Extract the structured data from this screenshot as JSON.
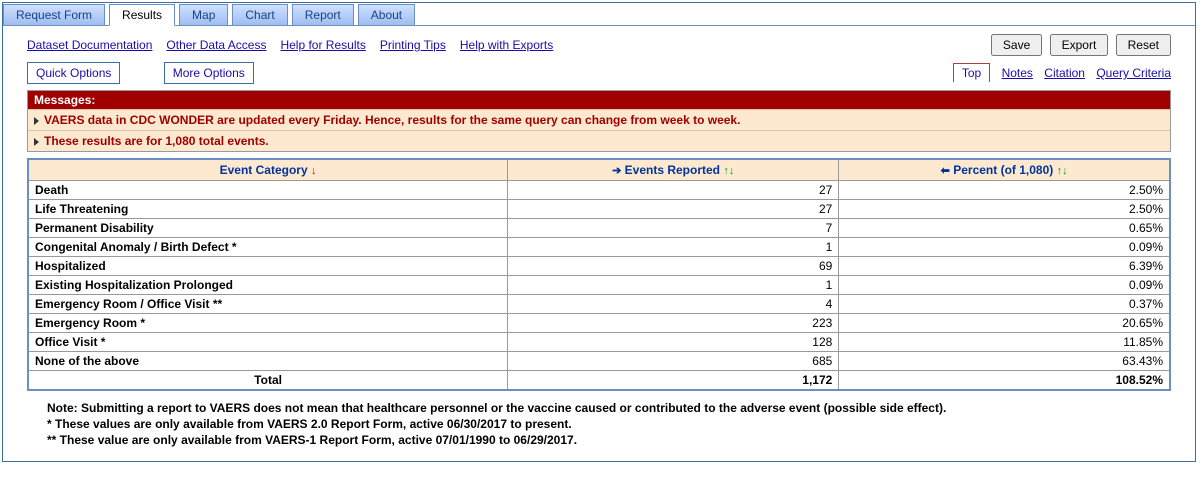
{
  "tabs": {
    "items": [
      "Request Form",
      "Results",
      "Map",
      "Chart",
      "Report",
      "About"
    ],
    "active_index": 1
  },
  "sublinks": [
    "Dataset Documentation",
    "Other Data Access",
    "Help for Results",
    "Printing Tips",
    "Help with Exports"
  ],
  "buttons": {
    "save": "Save",
    "export": "Export",
    "reset": "Reset"
  },
  "options": {
    "quick": "Quick Options",
    "more": "More Options"
  },
  "rightlinks": {
    "top": "Top",
    "notes": "Notes",
    "citation": "Citation",
    "query": "Query Criteria"
  },
  "messages": {
    "header": "Messages:",
    "items": [
      "VAERS data in CDC WONDER are updated every Friday. Hence, results for the same query can change from week to week.",
      "These results are for 1,080 total events."
    ]
  },
  "table": {
    "headers": {
      "category": "Event Category",
      "events": "Events Reported",
      "percent": "Percent (of 1,080)"
    },
    "rows": [
      {
        "cat": "Death",
        "events": "27",
        "pct": "2.50%"
      },
      {
        "cat": "Life Threatening",
        "events": "27",
        "pct": "2.50%"
      },
      {
        "cat": "Permanent Disability",
        "events": "7",
        "pct": "0.65%"
      },
      {
        "cat": "Congenital Anomaly / Birth Defect *",
        "events": "1",
        "pct": "0.09%"
      },
      {
        "cat": "Hospitalized",
        "events": "69",
        "pct": "6.39%"
      },
      {
        "cat": "Existing Hospitalization Prolonged",
        "events": "1",
        "pct": "0.09%"
      },
      {
        "cat": "Emergency Room / Office Visit **",
        "events": "4",
        "pct": "0.37%"
      },
      {
        "cat": "Emergency Room *",
        "events": "223",
        "pct": "20.65%"
      },
      {
        "cat": "Office Visit *",
        "events": "128",
        "pct": "11.85%"
      },
      {
        "cat": "None of the above",
        "events": "685",
        "pct": "63.43%"
      }
    ],
    "total": {
      "cat": "Total",
      "events": "1,172",
      "pct": "108.52%"
    }
  },
  "footnotes": [
    "Note: Submitting a report to VAERS does not mean that healthcare personnel or the vaccine caused or contributed to the adverse event (possible side effect).",
    "* These values are only available from VAERS 2.0 Report Form, active 06/30/2017 to present.",
    "** These value are only available from VAERS-1 Report Form, active 07/01/1990 to 06/29/2017."
  ],
  "colwidths": {
    "cat": "42%",
    "events": "29%",
    "pct": "29%"
  }
}
